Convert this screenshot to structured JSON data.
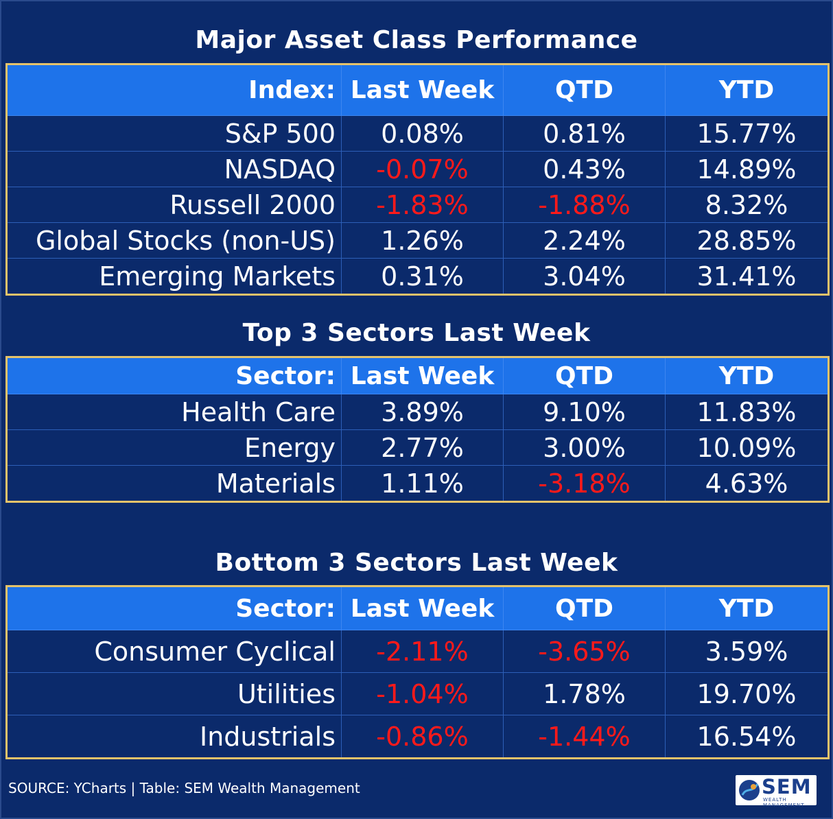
{
  "tables": [
    {
      "title": "Major Asset Class Performance",
      "headers": [
        "Index:",
        "Last Week",
        "QTD",
        "YTD"
      ],
      "rows": [
        {
          "label": "S&P 500",
          "last_week": "0.08%",
          "qtd": "0.81%",
          "ytd": "15.77%"
        },
        {
          "label": "NASDAQ",
          "last_week": "-0.07%",
          "qtd": "0.43%",
          "ytd": "14.89%"
        },
        {
          "label": "Russell 2000",
          "last_week": "-1.83%",
          "qtd": "-1.88%",
          "ytd": "8.32%"
        },
        {
          "label": "Global Stocks (non-US)",
          "last_week": "1.26%",
          "qtd": "2.24%",
          "ytd": "28.85%"
        },
        {
          "label": "Emerging Markets",
          "last_week": "0.31%",
          "qtd": "3.04%",
          "ytd": "31.41%"
        }
      ]
    },
    {
      "title": "Top 3 Sectors Last Week",
      "headers": [
        "Sector:",
        "Last Week",
        "QTD",
        "YTD"
      ],
      "rows": [
        {
          "label": "Health Care",
          "last_week": "3.89%",
          "qtd": "9.10%",
          "ytd": "11.83%"
        },
        {
          "label": "Energy",
          "last_week": "2.77%",
          "qtd": "3.00%",
          "ytd": "10.09%"
        },
        {
          "label": "Materials",
          "last_week": "1.11%",
          "qtd": "-3.18%",
          "ytd": "4.63%"
        }
      ]
    },
    {
      "title": "Bottom 3 Sectors Last Week",
      "headers": [
        "Sector:",
        "Last Week",
        "QTD",
        "YTD"
      ],
      "rows": [
        {
          "label": "Consumer Cyclical",
          "last_week": "-2.11%",
          "qtd": "-3.65%",
          "ytd": "3.59%"
        },
        {
          "label": "Utilities",
          "last_week": "-1.04%",
          "qtd": "1.78%",
          "ytd": "19.70%"
        },
        {
          "label": "Industrials",
          "last_week": "-0.86%",
          "qtd": "-1.44%",
          "ytd": "16.54%"
        }
      ]
    }
  ],
  "footer": {
    "source": "SOURCE: YCharts | Table: SEM Wealth Management",
    "logo_text": "SEM",
    "logo_subtext": "WEALTH MANAGEMENT"
  },
  "colors": {
    "background": "#0b2a6b",
    "header": "#1e73ea",
    "border": "#e6c36a",
    "negative": "#ff1a1a"
  }
}
